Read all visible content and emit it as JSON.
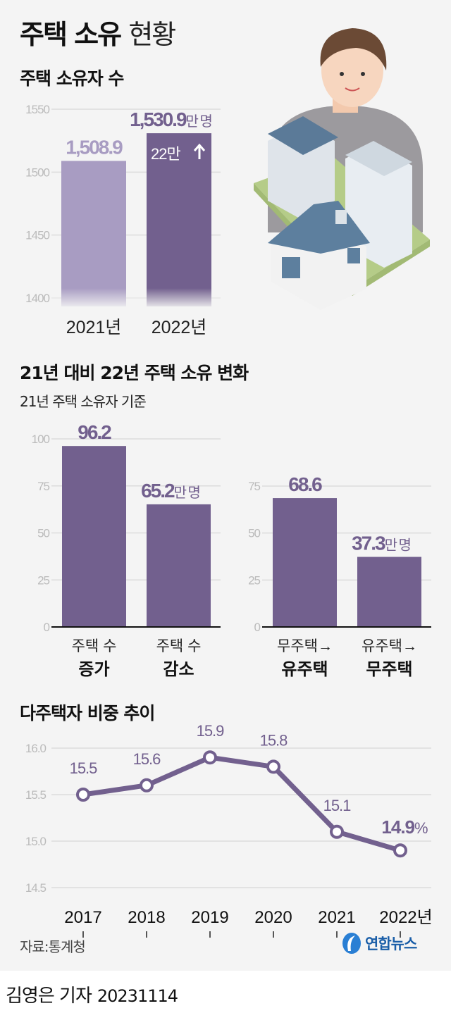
{
  "title": {
    "bold": "주택 소유",
    "light": "현황"
  },
  "sections": [
    {
      "title": "주택 소유자 수"
    },
    {
      "title": "21년 대비 22년 주택 소유 변화",
      "subtitle": "21년 주택 소유자 기준"
    },
    {
      "title": "다주택자 비중 추이"
    }
  ],
  "chart_data": [
    {
      "type": "bar",
      "title": "주택 소유자 수",
      "categories": [
        "2021년",
        "2022년"
      ],
      "values": [
        1508.9,
        1530.9
      ],
      "value_labels": [
        "1,508.9",
        "1,530.9"
      ],
      "unit": "만 명",
      "annotation": "22만",
      "annotation_icon": "arrow-up-icon",
      "yticks": [
        "1400",
        "1450",
        "1500",
        "1550"
      ],
      "ylim": [
        1400,
        1550
      ],
      "colors": [
        "#a89cc2",
        "#72608e"
      ],
      "grid": true
    },
    {
      "type": "bar",
      "categories": [
        [
          "주택 수",
          "증가"
        ],
        [
          "주택 수",
          "감소"
        ]
      ],
      "values": [
        96.2,
        65.2
      ],
      "value_labels": [
        "96.2",
        "65.2"
      ],
      "unit": "만 명",
      "yticks": [
        "0",
        "25",
        "50",
        "75",
        "100"
      ],
      "ylim": [
        0,
        100
      ],
      "color": "#72608e",
      "grid": true
    },
    {
      "type": "bar",
      "categories": [
        [
          "무주택→",
          "유주택"
        ],
        [
          "유주택→",
          "무주택"
        ]
      ],
      "values": [
        68.6,
        37.3
      ],
      "value_labels": [
        "68.6",
        "37.3"
      ],
      "unit": "만 명",
      "yticks": [
        "0",
        "25",
        "50",
        "75"
      ],
      "ylim": [
        0,
        75
      ],
      "color": "#72608e",
      "grid": true
    },
    {
      "type": "line",
      "title": "다주택자 비중 추이",
      "categories": [
        "2017",
        "2018",
        "2019",
        "2020",
        "2021",
        "2022년"
      ],
      "values": [
        15.5,
        15.6,
        15.9,
        15.8,
        15.1,
        14.9
      ],
      "value_labels": [
        "15.5",
        "15.6",
        "15.9",
        "15.8",
        "15.1",
        "14.9"
      ],
      "unit": "%",
      "yticks": [
        "14.5",
        "15.0",
        "15.5",
        "16.0"
      ],
      "ylim": [
        14.5,
        16.0
      ],
      "color": "#72608e",
      "grid": true
    }
  ],
  "footer": {
    "source": "자료:통계청",
    "logo": "연합뉴스",
    "byline": "김영은 기자",
    "date": "20231114"
  }
}
